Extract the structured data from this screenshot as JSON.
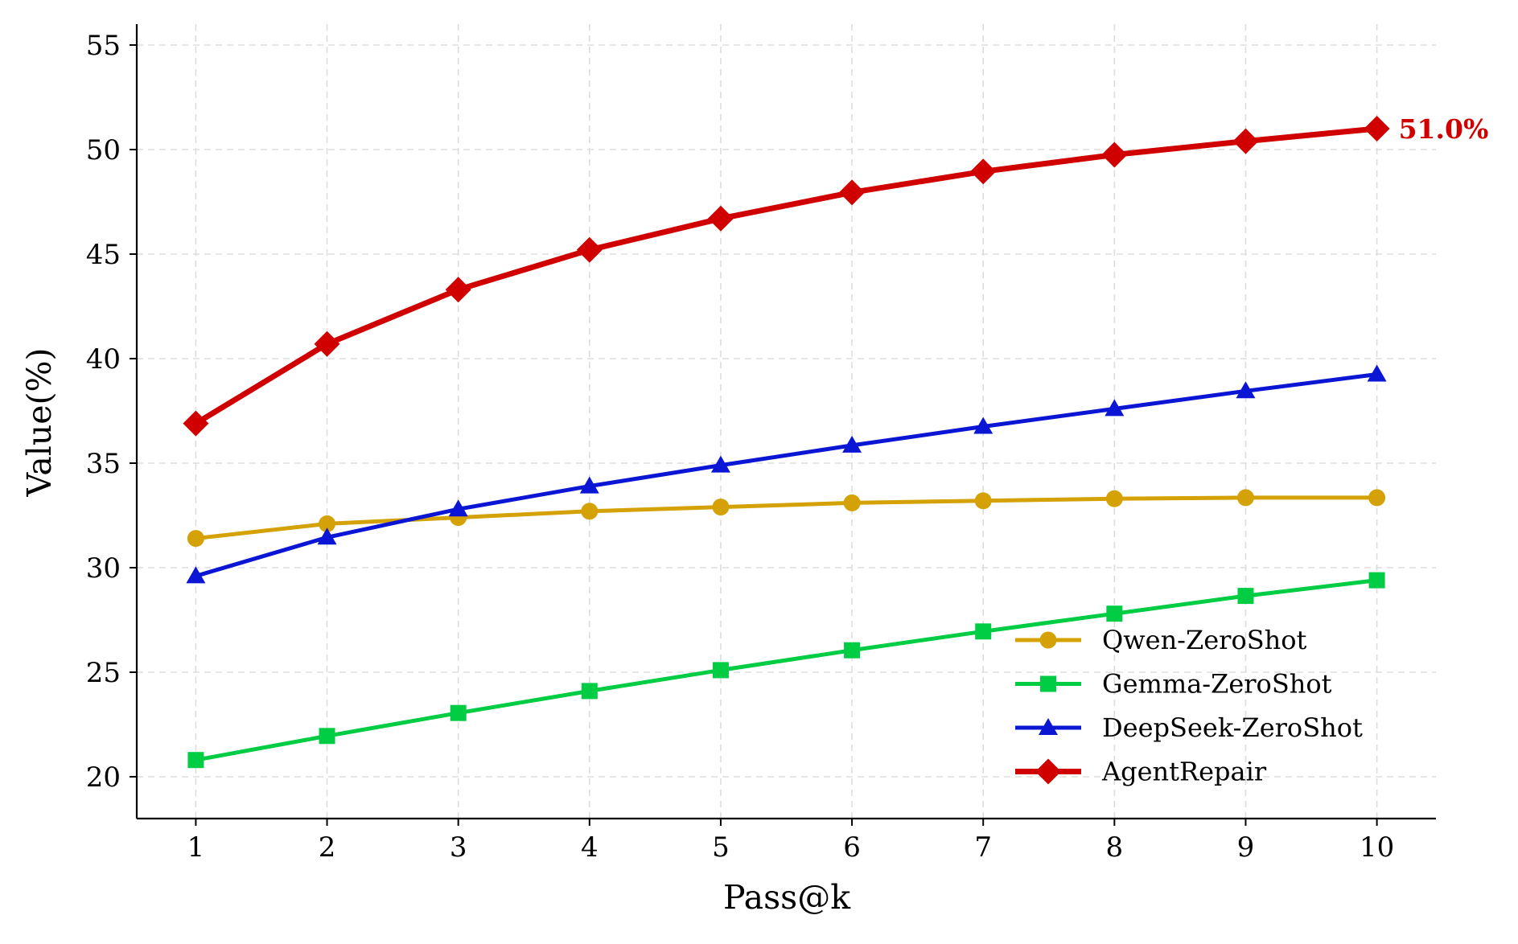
{
  "chart_data": {
    "type": "line",
    "title": "",
    "xlabel": "Pass@k",
    "ylabel": "Value(%)",
    "x": [
      1,
      2,
      3,
      4,
      5,
      6,
      7,
      8,
      9,
      10
    ],
    "xlim": [
      0.55,
      10.45
    ],
    "ylim": [
      18,
      56
    ],
    "yticks": [
      20,
      25,
      30,
      35,
      40,
      45,
      50,
      55
    ],
    "grid": true,
    "legend_position": "bottom-right",
    "series": [
      {
        "name": "Qwen-ZeroShot",
        "color": "#D4A106",
        "marker": "circle",
        "values": [
          31.4,
          32.1,
          32.4,
          32.7,
          32.9,
          33.1,
          33.2,
          33.3,
          33.35,
          33.35
        ]
      },
      {
        "name": "Gemma-ZeroShot",
        "color": "#00CC44",
        "marker": "square",
        "values": [
          20.8,
          21.95,
          23.05,
          24.1,
          25.1,
          26.05,
          26.95,
          27.8,
          28.65,
          29.4
        ]
      },
      {
        "name": "DeepSeek-ZeroShot",
        "color": "#0A16D4",
        "marker": "triangle",
        "values": [
          29.6,
          31.45,
          32.8,
          33.9,
          34.9,
          35.85,
          36.75,
          37.6,
          38.45,
          39.25
        ]
      },
      {
        "name": "AgentRepair",
        "color": "#D00000",
        "marker": "diamond",
        "values": [
          36.9,
          40.7,
          43.3,
          45.2,
          46.7,
          47.95,
          48.95,
          49.75,
          50.4,
          51.0
        ]
      }
    ],
    "annotation": {
      "text": "51.0%",
      "series": "AgentRepair",
      "x": 10,
      "y": 51.0,
      "color": "#D00000"
    }
  }
}
